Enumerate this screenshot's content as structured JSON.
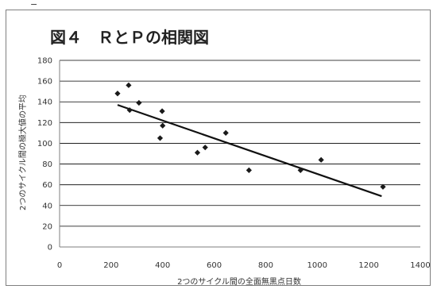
{
  "corner_mark": "−",
  "chart_data": {
    "type": "scatter",
    "title": "図４　ＲとＰの相関図",
    "xlabel": "2つのサイクル間の全面無黒点日数",
    "ylabel": "2つのサイクル間の極大値の平均",
    "xlim": [
      0,
      1400
    ],
    "ylim": [
      0,
      180
    ],
    "xticks": [
      0,
      200,
      400,
      600,
      800,
      1000,
      1200,
      1400
    ],
    "yticks": [
      0,
      20,
      40,
      60,
      80,
      100,
      120,
      140,
      160,
      180
    ],
    "xtick_labels": [
      "0",
      "200",
      "400",
      "600",
      "800",
      "1000",
      "1200",
      "1400"
    ],
    "ytick_labels": [
      "0",
      "20",
      "40",
      "60",
      "80",
      "100",
      "120",
      "140",
      "160",
      "180"
    ],
    "grid": "horizontal",
    "legend": "none",
    "points": [
      {
        "x": 225,
        "y": 148
      },
      {
        "x": 268,
        "y": 156
      },
      {
        "x": 272,
        "y": 132
      },
      {
        "x": 308,
        "y": 139
      },
      {
        "x": 390,
        "y": 105
      },
      {
        "x": 398,
        "y": 131
      },
      {
        "x": 400,
        "y": 117
      },
      {
        "x": 535,
        "y": 91
      },
      {
        "x": 565,
        "y": 96
      },
      {
        "x": 645,
        "y": 110
      },
      {
        "x": 735,
        "y": 74
      },
      {
        "x": 935,
        "y": 74
      },
      {
        "x": 1015,
        "y": 84
      },
      {
        "x": 1255,
        "y": 58
      }
    ],
    "trendline": {
      "x": [
        225,
        1250
      ],
      "y": [
        137,
        49
      ]
    },
    "colors": {
      "marker": "#1a1a1a",
      "trendline": "#111111",
      "grid": "#000000",
      "axis": "#7f7f7f"
    }
  }
}
